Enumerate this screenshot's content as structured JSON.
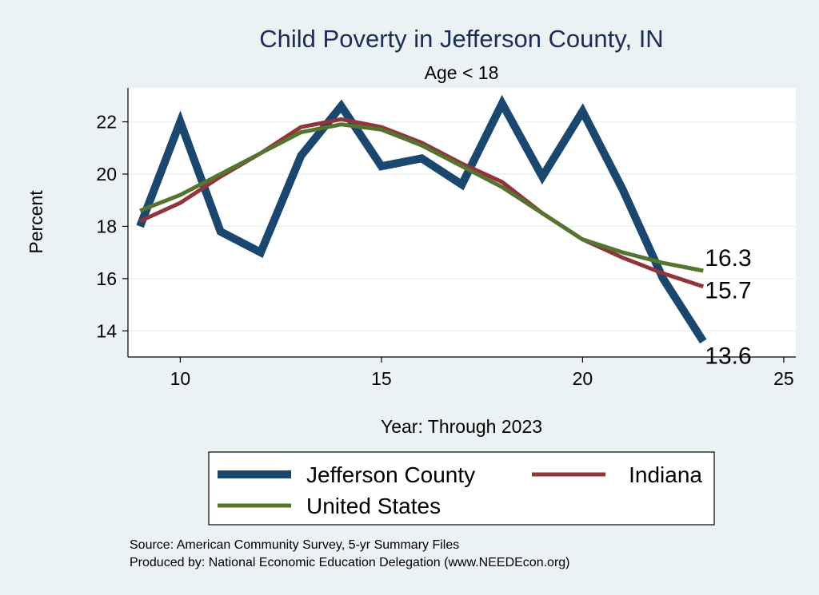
{
  "chart_data": {
    "type": "line",
    "title": "Child Poverty in Jefferson County, IN",
    "subtitle": "Age < 18",
    "xlabel": "Year: Through 2023",
    "ylabel": "Percent",
    "xlim": [
      8.7,
      25.3
    ],
    "ylim": [
      13.0,
      23.3
    ],
    "xticks": [
      10,
      15,
      20,
      25
    ],
    "yticks": [
      14,
      16,
      18,
      20,
      22
    ],
    "grid": true,
    "legend_position": "bottom",
    "x": [
      9,
      10,
      11,
      12,
      13,
      14,
      15,
      16,
      17,
      18,
      19,
      20,
      21,
      22,
      23
    ],
    "series": [
      {
        "name": "Jefferson County",
        "color": "#1a476f",
        "values": [
          18.0,
          22.0,
          17.8,
          17.0,
          20.7,
          22.6,
          20.3,
          20.6,
          19.6,
          22.7,
          19.9,
          22.4,
          19.4,
          16.0,
          13.6
        ],
        "end_label": "13.6"
      },
      {
        "name": "Indiana",
        "color": "#90353b",
        "values": [
          18.2,
          18.9,
          19.9,
          20.8,
          21.8,
          22.1,
          21.8,
          21.2,
          20.4,
          19.7,
          18.5,
          17.5,
          16.8,
          16.2,
          15.7
        ],
        "end_label": "15.7"
      },
      {
        "name": "United States",
        "color": "#55752f",
        "values": [
          18.6,
          19.2,
          20.0,
          20.8,
          21.6,
          21.9,
          21.7,
          21.1,
          20.3,
          19.5,
          18.5,
          17.5,
          17.0,
          16.6,
          16.3
        ],
        "end_label": "16.3"
      }
    ]
  },
  "source_lines": [
    "Source: American Community Survey, 5-yr Summary Files",
    "Produced by: National Economic Education Delegation (www.NEEDEcon.org)"
  ]
}
